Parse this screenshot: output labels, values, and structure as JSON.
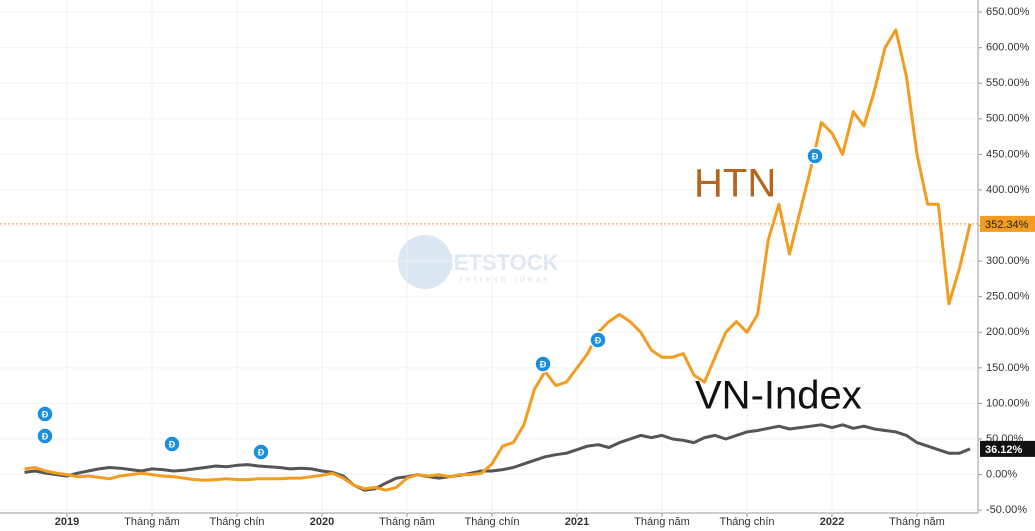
{
  "chart_data": {
    "type": "line",
    "watermark": "VIETSTOCK",
    "watermark_tagline": "refresh ideas",
    "dividend_marker": "Đ",
    "categories": [
      null,
      null,
      null,
      null,
      "2019",
      null,
      null,
      null,
      null,
      null,
      null,
      null,
      "Tháng năm",
      null,
      null,
      null,
      null,
      null,
      null,
      null,
      "Tháng chín",
      null,
      null,
      null,
      null,
      null,
      null,
      null,
      "2020",
      null,
      null,
      null,
      null,
      null,
      null,
      null,
      "Tháng năm",
      null,
      null,
      null,
      null,
      null,
      null,
      null,
      "Tháng chín",
      null,
      null,
      null,
      null,
      null,
      null,
      null,
      "2021",
      null,
      null,
      null,
      null,
      null,
      null,
      null,
      "Tháng năm",
      null,
      null,
      null,
      null,
      null,
      null,
      null,
      "Tháng chín",
      null,
      null,
      null,
      null,
      null,
      null,
      null,
      "2022",
      null,
      null,
      null,
      null,
      null,
      null,
      null,
      "Tháng năm",
      null,
      null,
      null,
      null,
      null
    ],
    "series": [
      {
        "name": "HTN",
        "color": "#f39c1f",
        "label_color": "#b4651e",
        "values": [
          8,
          10,
          5,
          2,
          0,
          -3,
          -2,
          -4,
          -6,
          -2,
          0,
          2,
          0,
          -2,
          -3,
          -5,
          -7,
          -8,
          -7,
          -6,
          -7,
          -7,
          -6,
          -6,
          -6,
          -5,
          -5,
          -3,
          -1,
          2,
          -5,
          -15,
          -20,
          -18,
          -22,
          -18,
          -5,
          0,
          -2,
          0,
          -3,
          0,
          0,
          2,
          15,
          40,
          45,
          70,
          120,
          145,
          125,
          130,
          150,
          170,
          200,
          215,
          225,
          215,
          200,
          175,
          165,
          165,
          170,
          140,
          130,
          165,
          200,
          215,
          200,
          225,
          330,
          380,
          310,
          370,
          430,
          495,
          480,
          450,
          510,
          490,
          540,
          600,
          625,
          560,
          450,
          380,
          380,
          240,
          290,
          352.34
        ],
        "value_labels": [
          null,
          null,
          null,
          null,
          null,
          null,
          null,
          null,
          null,
          null,
          null,
          null,
          null,
          null,
          null,
          null,
          null,
          null,
          null,
          null,
          null,
          null,
          null,
          null,
          null,
          null,
          null,
          null,
          null,
          null,
          null,
          null,
          null,
          null,
          null,
          null,
          null,
          null,
          null,
          null,
          null,
          null,
          null,
          null,
          null,
          null,
          null,
          null,
          null,
          null,
          null,
          null,
          null,
          null,
          null,
          null,
          null,
          null,
          null,
          null,
          null,
          null,
          null,
          null,
          null,
          null,
          null,
          null,
          null,
          null,
          null,
          null,
          null,
          null,
          null,
          null,
          null,
          null,
          null,
          null,
          null,
          null,
          null,
          null,
          null,
          null,
          null,
          null,
          null,
          "352.34%"
        ]
      },
      {
        "name": "VN-Index",
        "color": "#555555",
        "label_color": "#111111",
        "values": [
          3,
          5,
          2,
          0,
          -2,
          2,
          5,
          8,
          10,
          9,
          7,
          5,
          8,
          7,
          5,
          6,
          8,
          10,
          12,
          11,
          13,
          14,
          12,
          11,
          10,
          8,
          9,
          8,
          5,
          3,
          -2,
          -15,
          -22,
          -20,
          -12,
          -5,
          -3,
          0,
          -3,
          -5,
          -3,
          -1,
          2,
          5,
          5,
          7,
          10,
          15,
          20,
          25,
          28,
          30,
          35,
          40,
          42,
          38,
          45,
          50,
          55,
          52,
          55,
          50,
          48,
          45,
          52,
          55,
          50,
          55,
          60,
          62,
          65,
          68,
          64,
          66,
          68,
          70,
          66,
          70,
          65,
          68,
          64,
          62,
          60,
          55,
          45,
          40,
          35,
          30,
          30,
          36.12
        ],
        "value_labels": [
          null,
          null,
          null,
          null,
          null,
          null,
          null,
          null,
          null,
          null,
          null,
          null,
          null,
          null,
          null,
          null,
          null,
          null,
          null,
          null,
          null,
          null,
          null,
          null,
          null,
          null,
          null,
          null,
          null,
          null,
          null,
          null,
          null,
          null,
          null,
          null,
          null,
          null,
          null,
          null,
          null,
          null,
          null,
          null,
          null,
          null,
          null,
          null,
          null,
          null,
          null,
          null,
          null,
          null,
          null,
          null,
          null,
          null,
          null,
          null,
          null,
          null,
          null,
          null,
          null,
          null,
          null,
          null,
          null,
          null,
          null,
          null,
          null,
          null,
          null,
          null,
          null,
          null,
          null,
          null,
          null,
          null,
          null,
          null,
          null,
          null,
          null,
          null,
          null,
          "36.12%"
        ]
      }
    ],
    "ylim": [
      -54,
      667
    ],
    "yticks": [
      {
        "value": -50,
        "label": "-50.00%"
      },
      {
        "value": 0,
        "label": "0.00%"
      },
      {
        "value": 50,
        "label": "50.00%"
      },
      {
        "value": 100,
        "label": "100.00%"
      },
      {
        "value": 150,
        "label": "150.00%"
      },
      {
        "value": 200,
        "label": "200.00%"
      },
      {
        "value": 250,
        "label": "250.00%"
      },
      {
        "value": 300,
        "label": "300.00%"
      },
      {
        "value": 350,
        "label": "350.00%"
      },
      {
        "value": 400,
        "label": "400.00%"
      },
      {
        "value": 450,
        "label": "450.00%"
      },
      {
        "value": 500,
        "label": "500.00%"
      },
      {
        "value": 550,
        "label": "550.00%"
      },
      {
        "value": 600,
        "label": "600.00%"
      },
      {
        "value": 650,
        "label": "650.00%"
      }
    ],
    "grid": true
  }
}
